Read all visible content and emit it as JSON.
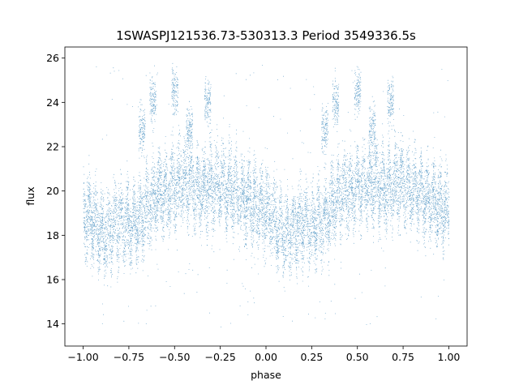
{
  "chart_data": {
    "type": "scatter",
    "title": "1SWASPJ121536.73-530313.3 Period 3549336.5s",
    "xlabel": "phase",
    "ylabel": "flux",
    "xlim": [
      -1.1,
      1.1
    ],
    "ylim": [
      13.0,
      26.5
    ],
    "xticks": [
      -1.0,
      -0.75,
      -0.5,
      -0.25,
      0.0,
      0.25,
      0.5,
      0.75,
      1.0
    ],
    "xtick_labels": [
      "−1.00",
      "−0.75",
      "−0.50",
      "−0.25",
      "0.00",
      "0.25",
      "0.50",
      "0.75",
      "1.00"
    ],
    "yticks": [
      14,
      16,
      18,
      20,
      22,
      24,
      26
    ],
    "ytick_labels": [
      "14",
      "16",
      "18",
      "20",
      "22",
      "24",
      "26"
    ],
    "grid": false,
    "marker_color": "#1f77b4",
    "series": [
      {
        "trend": [
          [
            -1.0,
            19.1
          ],
          [
            -0.95,
            18.6
          ],
          [
            -0.9,
            18.0
          ],
          [
            -0.85,
            18.2
          ],
          [
            -0.8,
            18.7
          ],
          [
            -0.75,
            18.4
          ],
          [
            -0.7,
            18.6
          ],
          [
            -0.65,
            19.2
          ],
          [
            -0.6,
            19.8
          ],
          [
            -0.55,
            20.0
          ],
          [
            -0.5,
            20.2
          ],
          [
            -0.45,
            20.4
          ],
          [
            -0.4,
            20.3
          ],
          [
            -0.35,
            20.0
          ],
          [
            -0.3,
            20.3
          ],
          [
            -0.25,
            20.4
          ],
          [
            -0.2,
            20.1
          ],
          [
            -0.15,
            19.8
          ],
          [
            -0.1,
            19.6
          ],
          [
            -0.05,
            19.3
          ],
          [
            0.0,
            19.1
          ],
          [
            0.05,
            18.6
          ],
          [
            0.1,
            18.0
          ],
          [
            0.15,
            18.2
          ],
          [
            0.2,
            18.7
          ],
          [
            0.25,
            18.4
          ],
          [
            0.3,
            18.6
          ],
          [
            0.35,
            19.2
          ],
          [
            0.4,
            19.8
          ],
          [
            0.45,
            20.0
          ],
          [
            0.5,
            20.2
          ],
          [
            0.55,
            20.4
          ],
          [
            0.6,
            20.3
          ],
          [
            0.65,
            20.0
          ],
          [
            0.7,
            20.3
          ],
          [
            0.75,
            20.4
          ],
          [
            0.8,
            20.1
          ],
          [
            0.85,
            19.8
          ],
          [
            0.9,
            19.6
          ],
          [
            0.95,
            19.3
          ],
          [
            1.0,
            19.1
          ]
        ],
        "upper_clumps": [
          [
            -0.62,
            24.0
          ],
          [
            -0.5,
            24.5
          ],
          [
            -0.32,
            24.0
          ],
          [
            -0.42,
            22.8
          ],
          [
            -0.68,
            22.8
          ],
          [
            0.38,
            24.0
          ],
          [
            0.5,
            24.5
          ],
          [
            0.68,
            24.0
          ],
          [
            0.58,
            22.8
          ],
          [
            0.32,
            22.8
          ]
        ],
        "point_count": 14000,
        "outlier_count": 260
      }
    ]
  }
}
